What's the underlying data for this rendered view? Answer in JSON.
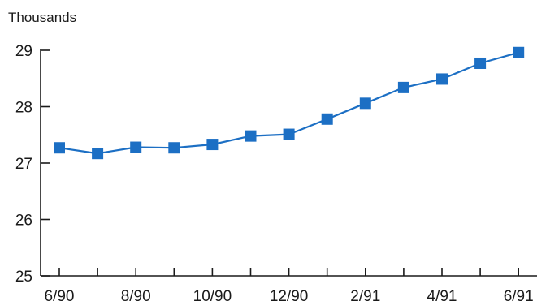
{
  "chart_data": {
    "type": "line",
    "y_unit_label": "Thousands",
    "x": [
      "6/90",
      "7/90",
      "8/90",
      "9/90",
      "10/90",
      "11/90",
      "12/90",
      "1/91",
      "2/91",
      "3/91",
      "4/91",
      "5/91",
      "6/91"
    ],
    "x_tick_labels": [
      "6/90",
      "8/90",
      "10/90",
      "12/90",
      "2/91",
      "4/91",
      "6/91"
    ],
    "series": [
      {
        "values": [
          27.27,
          27.17,
          27.28,
          27.27,
          27.33,
          27.48,
          27.51,
          27.78,
          28.06,
          28.34,
          28.49,
          28.77,
          28.96
        ]
      }
    ],
    "ylim": [
      25,
      29
    ],
    "y_ticks": [
      25,
      26,
      27,
      28,
      29
    ],
    "grid": false,
    "colors": {
      "series": "#1c6fc4",
      "axis": "#1a1a1a"
    }
  }
}
